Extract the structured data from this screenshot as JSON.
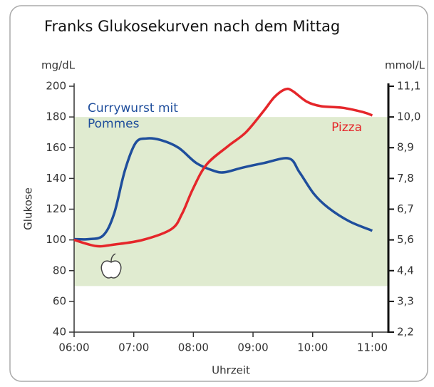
{
  "chart_data": {
    "type": "line",
    "title": "Franks Glukosekurven nach dem Mittag",
    "y_unit": "mg/dL",
    "y2_unit": "mmol/L",
    "ylabel": "Glukose",
    "xlabel": "Uhrzeit",
    "xlim": [
      6,
      11.27
    ],
    "xticks": [
      {
        "value": 6,
        "label": "06:00"
      },
      {
        "value": 7,
        "label": "07:00"
      },
      {
        "value": 8,
        "label": "08:00"
      },
      {
        "value": 9,
        "label": "09:00"
      },
      {
        "value": 10,
        "label": "10:00"
      },
      {
        "value": 11,
        "label": "11:00"
      }
    ],
    "ylim": [
      40,
      200
    ],
    "yticks": [
      40,
      60,
      80,
      100,
      120,
      140,
      160,
      180,
      200
    ],
    "y2lim": [
      2.222,
      11.111
    ],
    "y2ticks": [
      {
        "value": 2.222,
        "label": "2,2"
      },
      {
        "value": 3.333,
        "label": "3,3"
      },
      {
        "value": 4.444,
        "label": "4,4"
      },
      {
        "value": 5.556,
        "label": "5,6"
      },
      {
        "value": 6.667,
        "label": "6,7"
      },
      {
        "value": 7.778,
        "label": "7,8"
      },
      {
        "value": 8.889,
        "label": "8,9"
      },
      {
        "value": 10.0,
        "label": "10,0"
      },
      {
        "value": 11.111,
        "label": "11,1"
      }
    ],
    "target_range": [
      70,
      180
    ],
    "target_color": "#e0ebd0",
    "series": [
      {
        "name": "Currywurst mit Pommes",
        "color": "#1f4e9c",
        "x": [
          6.0,
          6.25,
          6.49,
          6.67,
          6.85,
          7.03,
          7.21,
          7.45,
          7.75,
          8.05,
          8.34,
          8.52,
          8.82,
          9.18,
          9.6,
          9.78,
          10.02,
          10.26,
          10.62,
          11.0
        ],
        "values": [
          100.5,
          100.5,
          103,
          117,
          145,
          163,
          166,
          165,
          160,
          150,
          145,
          144,
          147,
          150,
          153,
          144,
          130,
          121,
          112,
          106
        ]
      },
      {
        "name": "Pizza",
        "color": "#e5262a",
        "x": [
          6.0,
          6.37,
          6.67,
          7.15,
          7.63,
          7.81,
          7.99,
          8.22,
          8.58,
          8.88,
          9.18,
          9.36,
          9.54,
          9.66,
          9.9,
          10.14,
          10.5,
          10.86,
          11.0
        ],
        "values": [
          100,
          96,
          97,
          100,
          107,
          117,
          133,
          149,
          161,
          170,
          184,
          193,
          198,
          197,
          190,
          187,
          186,
          183,
          181
        ]
      }
    ]
  }
}
